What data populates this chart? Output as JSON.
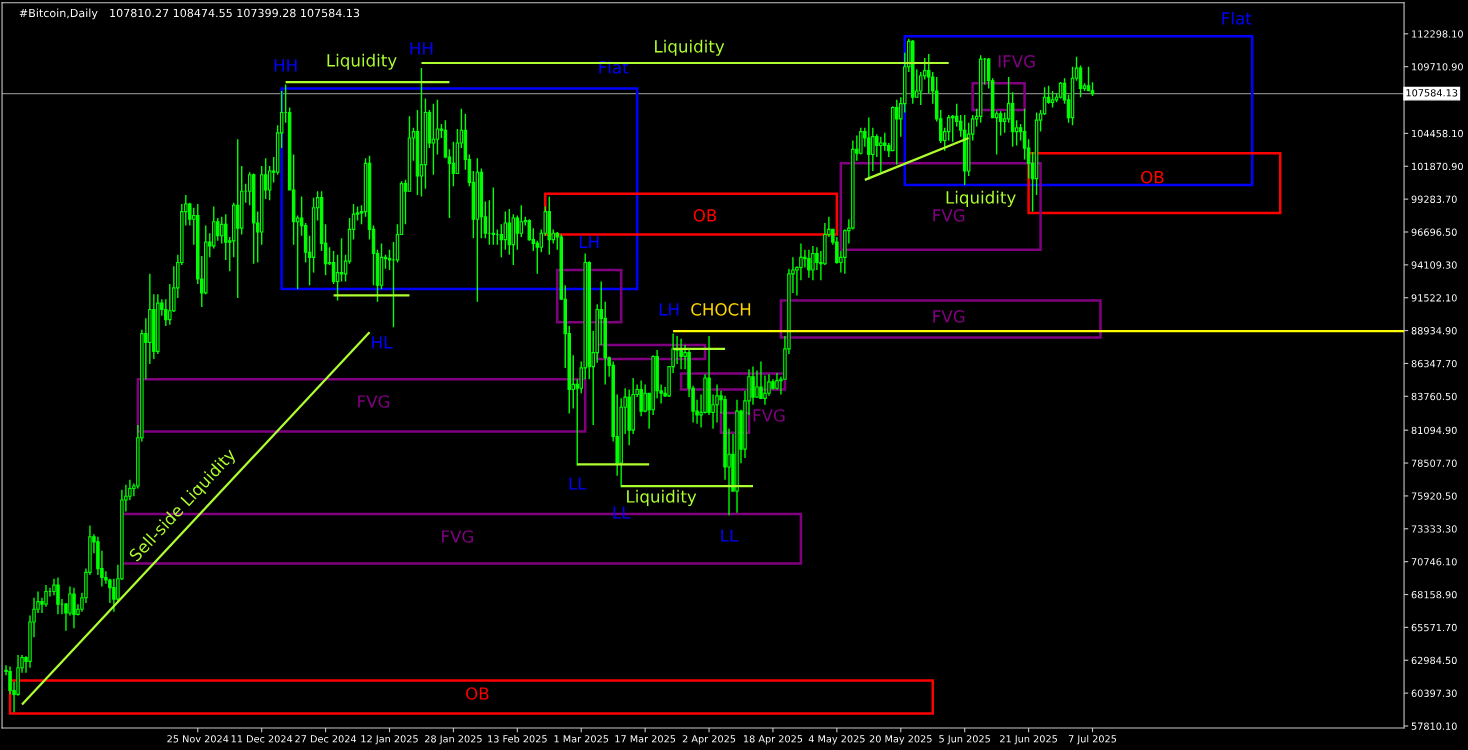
{
  "chart_data": {
    "type": "candlestick",
    "title": "#Bitcoin,Daily",
    "subtitle": "107810.27 108474.55 107399.28 107584.13",
    "x": [
      "2024-10-08",
      "2024-10-09",
      "2024-10-10",
      "2024-10-11",
      "2024-10-12",
      "2024-10-13",
      "2024-10-14",
      "2024-10-15",
      "2024-10-16",
      "2024-10-17",
      "2024-10-18",
      "2024-10-19",
      "2024-10-20",
      "2024-10-21",
      "2024-10-22",
      "2024-10-23",
      "2024-10-24",
      "2024-10-25",
      "2024-10-26",
      "2024-10-27",
      "2024-10-28",
      "2024-10-29",
      "2024-10-30",
      "2024-10-31",
      "2024-11-01",
      "2024-11-02",
      "2024-11-03",
      "2024-11-04",
      "2024-11-05",
      "2024-11-06",
      "2024-11-07",
      "2024-11-08",
      "2024-11-09",
      "2024-11-10",
      "2024-11-11",
      "2024-11-12",
      "2024-11-13",
      "2024-11-14",
      "2024-11-15",
      "2024-11-16",
      "2024-11-17",
      "2024-11-18",
      "2024-11-19",
      "2024-11-20",
      "2024-11-21",
      "2024-11-22",
      "2024-11-23",
      "2024-11-24",
      "2024-11-25",
      "2024-11-26",
      "2024-11-27",
      "2024-11-28",
      "2024-11-29",
      "2024-11-30",
      "2024-12-01",
      "2024-12-02",
      "2024-12-03",
      "2024-12-04",
      "2024-12-05",
      "2024-12-06",
      "2024-12-07",
      "2024-12-08",
      "2024-12-09",
      "2024-12-10",
      "2024-12-11",
      "2024-12-12",
      "2024-12-13",
      "2024-12-14",
      "2024-12-15",
      "2024-12-16",
      "2024-12-17",
      "2024-12-18",
      "2024-12-19",
      "2024-12-20",
      "2024-12-21",
      "2024-12-22",
      "2024-12-23",
      "2024-12-24",
      "2024-12-25",
      "2024-12-26",
      "2024-12-27",
      "2024-12-28",
      "2024-12-29",
      "2024-12-30",
      "2024-12-31",
      "2025-01-01",
      "2025-01-02",
      "2025-01-03",
      "2025-01-04",
      "2025-01-05",
      "2025-01-06",
      "2025-01-07",
      "2025-01-08",
      "2025-01-09",
      "2025-01-10",
      "2025-01-11",
      "2025-01-12",
      "2025-01-13",
      "2025-01-14",
      "2025-01-15",
      "2025-01-16",
      "2025-01-17",
      "2025-01-18",
      "2025-01-19",
      "2025-01-20",
      "2025-01-21",
      "2025-01-22",
      "2025-01-23",
      "2025-01-24",
      "2025-01-25",
      "2025-01-26",
      "2025-01-27",
      "2025-01-28",
      "2025-01-29",
      "2025-01-30",
      "2025-01-31",
      "2025-02-01",
      "2025-02-02",
      "2025-02-03",
      "2025-02-04",
      "2025-02-05",
      "2025-02-06",
      "2025-02-07",
      "2025-02-08",
      "2025-02-09",
      "2025-02-10",
      "2025-02-11",
      "2025-02-12",
      "2025-02-13",
      "2025-02-14",
      "2025-02-15",
      "2025-02-16",
      "2025-02-17",
      "2025-02-18",
      "2025-02-19",
      "2025-02-20",
      "2025-02-21",
      "2025-02-22",
      "2025-02-23",
      "2025-02-24",
      "2025-02-25",
      "2025-02-26",
      "2025-02-27",
      "2025-02-28",
      "2025-03-01",
      "2025-03-02",
      "2025-03-03",
      "2025-03-04",
      "2025-03-05",
      "2025-03-06",
      "2025-03-07",
      "2025-03-08",
      "2025-03-09",
      "2025-03-10",
      "2025-03-11",
      "2025-03-12",
      "2025-03-13",
      "2025-03-14",
      "2025-03-15",
      "2025-03-16",
      "2025-03-17",
      "2025-03-18",
      "2025-03-19",
      "2025-03-20",
      "2025-03-21",
      "2025-03-22",
      "2025-03-23",
      "2025-03-24",
      "2025-03-25",
      "2025-03-26",
      "2025-03-27",
      "2025-03-28",
      "2025-03-29",
      "2025-03-30",
      "2025-03-31",
      "2025-04-01",
      "2025-04-02",
      "2025-04-03",
      "2025-04-04",
      "2025-04-05",
      "2025-04-06",
      "2025-04-07",
      "2025-04-08",
      "2025-04-09",
      "2025-04-10",
      "2025-04-11",
      "2025-04-12",
      "2025-04-13",
      "2025-04-14",
      "2025-04-15",
      "2025-04-16",
      "2025-04-17",
      "2025-04-18",
      "2025-04-19",
      "2025-04-20",
      "2025-04-21",
      "2025-04-22",
      "2025-04-23",
      "2025-04-24",
      "2025-04-25",
      "2025-04-26",
      "2025-04-27",
      "2025-04-28",
      "2025-04-29",
      "2025-04-30",
      "2025-05-01",
      "2025-05-02",
      "2025-05-03",
      "2025-05-04",
      "2025-05-05",
      "2025-05-06",
      "2025-05-07",
      "2025-05-08",
      "2025-05-09",
      "2025-05-10",
      "2025-05-11",
      "2025-05-12",
      "2025-05-13",
      "2025-05-14",
      "2025-05-15",
      "2025-05-16",
      "2025-05-17",
      "2025-05-18",
      "2025-05-19",
      "2025-05-20",
      "2025-05-21",
      "2025-05-22",
      "2025-05-23",
      "2025-05-24",
      "2025-05-25",
      "2025-05-26",
      "2025-05-27",
      "2025-05-28",
      "2025-05-29",
      "2025-05-30",
      "2025-05-31",
      "2025-06-01",
      "2025-06-02",
      "2025-06-03",
      "2025-06-04",
      "2025-06-05",
      "2025-06-06",
      "2025-06-07",
      "2025-06-08",
      "2025-06-09",
      "2025-06-10",
      "2025-06-11",
      "2025-06-12",
      "2025-06-13",
      "2025-06-14",
      "2025-06-15",
      "2025-06-16",
      "2025-06-17",
      "2025-06-18",
      "2025-06-19",
      "2025-06-20",
      "2025-06-21",
      "2025-06-22",
      "2025-06-23",
      "2025-06-24",
      "2025-06-25",
      "2025-06-26",
      "2025-06-27",
      "2025-06-28",
      "2025-06-29",
      "2025-06-30",
      "2025-07-01",
      "2025-07-02",
      "2025-07-03",
      "2025-07-04",
      "2025-07-05",
      "2025-07-06",
      "2025-07-07"
    ],
    "ohlc": [
      [
        62200,
        62600,
        61800,
        62100
      ],
      [
        62100,
        62500,
        60300,
        60600
      ],
      [
        60600,
        61300,
        58900,
        60300
      ],
      [
        60300,
        63400,
        60200,
        62400
      ],
      [
        62400,
        63400,
        62000,
        63200
      ],
      [
        63200,
        63300,
        62000,
        62900
      ],
      [
        62900,
        66500,
        62400,
        66000
      ],
      [
        66000,
        67900,
        64800,
        67000
      ],
      [
        67000,
        68400,
        66700,
        67600
      ],
      [
        67600,
        67900,
        66700,
        67400
      ],
      [
        67400,
        68900,
        67200,
        68400
      ],
      [
        68400,
        68700,
        68000,
        68400
      ],
      [
        68400,
        69400,
        68100,
        68900
      ],
      [
        68900,
        69500,
        66600,
        67400
      ],
      [
        67400,
        67800,
        66600,
        67400
      ],
      [
        67400,
        67500,
        65300,
        66700
      ],
      [
        66700,
        68800,
        66500,
        68200
      ],
      [
        68200,
        68700,
        65500,
        66600
      ],
      [
        66600,
        67400,
        66500,
        67000
      ],
      [
        67000,
        68300,
        66800,
        67900
      ],
      [
        67900,
        70200,
        67500,
        69900
      ],
      [
        69900,
        73600,
        69700,
        72700
      ],
      [
        72700,
        72900,
        71400,
        72300
      ],
      [
        72300,
        72700,
        69700,
        70200
      ],
      [
        70200,
        71600,
        68800,
        69500
      ],
      [
        69500,
        70000,
        69000,
        69300
      ],
      [
        69300,
        69400,
        67500,
        68700
      ],
      [
        68700,
        69400,
        66800,
        67800
      ],
      [
        67800,
        70500,
        67500,
        69400
      ],
      [
        69400,
        76400,
        69300,
        75600
      ],
      [
        75600,
        76800,
        74700,
        75900
      ],
      [
        75900,
        77200,
        75600,
        76500
      ],
      [
        76500,
        76900,
        75900,
        76700
      ],
      [
        76700,
        81500,
        76500,
        80500
      ],
      [
        80500,
        89000,
        80200,
        88700
      ],
      [
        88700,
        89900,
        85100,
        88000
      ],
      [
        88000,
        93400,
        86300,
        90600
      ],
      [
        90600,
        91800,
        86700,
        87300
      ],
      [
        87300,
        91800,
        87100,
        91100
      ],
      [
        91100,
        91400,
        90100,
        90600
      ],
      [
        90600,
        91400,
        89300,
        89800
      ],
      [
        89800,
        92600,
        89400,
        90500
      ],
      [
        90500,
        94000,
        90400,
        92300
      ],
      [
        92300,
        94900,
        91500,
        94300
      ],
      [
        94300,
        98900,
        94100,
        98300
      ],
      [
        98300,
        99600,
        97200,
        98900
      ],
      [
        98900,
        99000,
        97200,
        97700
      ],
      [
        97700,
        98600,
        95700,
        98000
      ],
      [
        98000,
        98900,
        92600,
        93000
      ],
      [
        93000,
        94800,
        90800,
        91900
      ],
      [
        91900,
        97200,
        91800,
        95900
      ],
      [
        95900,
        96600,
        94700,
        95600
      ],
      [
        95600,
        98700,
        95400,
        97500
      ],
      [
        97500,
        97800,
        96000,
        96400
      ],
      [
        96400,
        97900,
        95800,
        97300
      ],
      [
        97300,
        98100,
        94500,
        95900
      ],
      [
        95900,
        96300,
        93600,
        96000
      ],
      [
        96000,
        99000,
        94700,
        98800
      ],
      [
        98800,
        104000,
        91500,
        97000
      ],
      [
        97000,
        101900,
        96500,
        99900
      ],
      [
        99900,
        100500,
        99000,
        99900
      ],
      [
        99900,
        101400,
        98800,
        101200
      ],
      [
        101200,
        101300,
        94200,
        97400
      ],
      [
        97400,
        98300,
        94300,
        96700
      ],
      [
        96700,
        101900,
        95700,
        101200
      ],
      [
        101200,
        102500,
        99300,
        100000
      ],
      [
        100000,
        101900,
        99200,
        101500
      ],
      [
        101500,
        102600,
        100600,
        101400
      ],
      [
        101400,
        105100,
        101200,
        104500
      ],
      [
        104500,
        107800,
        103300,
        106100
      ],
      [
        106100,
        108300,
        105300,
        106100
      ],
      [
        106100,
        106500,
        100000,
        100000
      ],
      [
        100000,
        102800,
        95700,
        97500
      ],
      [
        97500,
        98000,
        92200,
        97800
      ],
      [
        97800,
        99500,
        96400,
        97200
      ],
      [
        97200,
        97400,
        94300,
        95100
      ],
      [
        95100,
        96400,
        92500,
        94700
      ],
      [
        94700,
        99400,
        93500,
        98600
      ],
      [
        98600,
        99900,
        97600,
        99400
      ],
      [
        99400,
        99900,
        95200,
        95800
      ],
      [
        95800,
        97300,
        93300,
        94200
      ],
      [
        94200,
        95500,
        94100,
        94300
      ],
      [
        94300,
        95200,
        92600,
        92800
      ],
      [
        92800,
        94900,
        91300,
        93500
      ],
      [
        93500,
        96200,
        92800,
        93400
      ],
      [
        93400,
        94900,
        92800,
        94400
      ],
      [
        94400,
        97800,
        94200,
        96900
      ],
      [
        96900,
        98900,
        96100,
        98100
      ],
      [
        98100,
        98700,
        97600,
        98200
      ],
      [
        98200,
        98800,
        97300,
        98300
      ],
      [
        98300,
        102500,
        97900,
        102100
      ],
      [
        102100,
        102700,
        96100,
        96900
      ],
      [
        96900,
        97200,
        92500,
        95000
      ],
      [
        95000,
        95300,
        91200,
        92500
      ],
      [
        92500,
        95800,
        92200,
        94700
      ],
      [
        94700,
        94900,
        93800,
        94600
      ],
      [
        94600,
        95300,
        93700,
        94500
      ],
      [
        94500,
        95900,
        89200,
        94500
      ],
      [
        94500,
        97300,
        94300,
        96500
      ],
      [
        96500,
        100700,
        96500,
        100500
      ],
      [
        100500,
        100800,
        97300,
        99900
      ],
      [
        99900,
        105800,
        99900,
        104100
      ],
      [
        104100,
        104900,
        102300,
        104600
      ],
      [
        104600,
        106300,
        99600,
        101100
      ],
      [
        101100,
        109600,
        99500,
        102000
      ],
      [
        102000,
        107200,
        100100,
        106100
      ],
      [
        106100,
        106300,
        103300,
        103700
      ],
      [
        103700,
        106800,
        101200,
        104000
      ],
      [
        104000,
        107100,
        102800,
        104800
      ],
      [
        104800,
        105200,
        104100,
        104700
      ],
      [
        104700,
        105500,
        102500,
        102600
      ],
      [
        102600,
        103200,
        97800,
        102100
      ],
      [
        102100,
        103800,
        100300,
        101300
      ],
      [
        101300,
        104800,
        101300,
        103700
      ],
      [
        103700,
        106400,
        103300,
        104700
      ],
      [
        104700,
        106000,
        101600,
        102400
      ],
      [
        102400,
        102800,
        100300,
        100600
      ],
      [
        100600,
        101500,
        96200,
        97700
      ],
      [
        97700,
        102500,
        91200,
        101400
      ],
      [
        101400,
        101700,
        96200,
        97900
      ],
      [
        97900,
        99100,
        96200,
        96600
      ],
      [
        96600,
        99200,
        95700,
        96600
      ],
      [
        96600,
        100200,
        95700,
        96500
      ],
      [
        96500,
        96900,
        95700,
        96500
      ],
      [
        96500,
        97300,
        94700,
        96100
      ],
      [
        96100,
        98300,
        95300,
        97400
      ],
      [
        97400,
        98500,
        94900,
        95700
      ],
      [
        95700,
        98100,
        94100,
        97800
      ],
      [
        97800,
        98000,
        95300,
        96600
      ],
      [
        96600,
        98800,
        96300,
        97500
      ],
      [
        97500,
        97900,
        97200,
        97600
      ],
      [
        97600,
        97700,
        96000,
        96100
      ],
      [
        96100,
        97000,
        95200,
        95800
      ],
      [
        95800,
        96000,
        93400,
        95500
      ],
      [
        95500,
        96900,
        95100,
        96600
      ],
      [
        96600,
        98700,
        96400,
        98300
      ],
      [
        98300,
        99500,
        94900,
        96100
      ],
      [
        96100,
        96900,
        95800,
        96600
      ],
      [
        96600,
        96700,
        95300,
        96300
      ],
      [
        96300,
        96500,
        91400,
        91400
      ],
      [
        91400,
        92500,
        86000,
        88700
      ],
      [
        88700,
        89300,
        82400,
        84300
      ],
      [
        84300,
        87000,
        82800,
        84700
      ],
      [
        84700,
        85100,
        78300,
        84400
      ],
      [
        84400,
        86500,
        84000,
        86000
      ],
      [
        86000,
        95000,
        85100,
        94300
      ],
      [
        94300,
        94400,
        85100,
        86100
      ],
      [
        86100,
        88900,
        81500,
        87200
      ],
      [
        87200,
        91000,
        86400,
        90600
      ],
      [
        90600,
        92800,
        87800,
        89900
      ],
      [
        89900,
        91200,
        84700,
        86800
      ],
      [
        86800,
        86900,
        85300,
        86200
      ],
      [
        86200,
        86500,
        80200,
        80600
      ],
      [
        80600,
        83900,
        77500,
        78500
      ],
      [
        78500,
        83600,
        76600,
        82900
      ],
      [
        82900,
        84400,
        80800,
        83700
      ],
      [
        83700,
        84300,
        79900,
        81100
      ],
      [
        81100,
        85200,
        80800,
        83900
      ],
      [
        83900,
        84700,
        83700,
        84300
      ],
      [
        84300,
        85000,
        82200,
        82600
      ],
      [
        82600,
        84700,
        82500,
        84000
      ],
      [
        84000,
        84000,
        81200,
        82700
      ],
      [
        82700,
        87000,
        82300,
        86900
      ],
      [
        86900,
        87400,
        83600,
        84200
      ],
      [
        84200,
        84700,
        83200,
        84000
      ],
      [
        84000,
        84500,
        83700,
        83800
      ],
      [
        83800,
        86100,
        83700,
        86100
      ],
      [
        86100,
        88700,
        85600,
        87500
      ],
      [
        87500,
        88500,
        86300,
        87400
      ],
      [
        87400,
        88300,
        85900,
        86900
      ],
      [
        86900,
        87800,
        85900,
        87200
      ],
      [
        87200,
        87500,
        83700,
        84400
      ],
      [
        84400,
        84600,
        81700,
        82600
      ],
      [
        82600,
        83500,
        81600,
        82300
      ],
      [
        82300,
        83900,
        81300,
        82500
      ],
      [
        82500,
        85500,
        82400,
        85200
      ],
      [
        85200,
        88500,
        82300,
        82500
      ],
      [
        82500,
        83900,
        81200,
        83100
      ],
      [
        83100,
        84700,
        81700,
        83800
      ],
      [
        83800,
        84200,
        82400,
        83500
      ],
      [
        83500,
        83800,
        77200,
        78200
      ],
      [
        78200,
        81200,
        74400,
        79200
      ],
      [
        79200,
        80800,
        76300,
        76300
      ],
      [
        76300,
        83500,
        74600,
        82600
      ],
      [
        82600,
        82700,
        78500,
        79600
      ],
      [
        79600,
        84200,
        78900,
        83400
      ],
      [
        83400,
        85900,
        82300,
        85300
      ],
      [
        85300,
        86100,
        83100,
        83700
      ],
      [
        83700,
        85800,
        83700,
        84500
      ],
      [
        84500,
        86500,
        83600,
        83600
      ],
      [
        83600,
        85400,
        83100,
        84000
      ],
      [
        84000,
        85500,
        83800,
        84900
      ],
      [
        84900,
        85100,
        84300,
        84400
      ],
      [
        84400,
        85600,
        84300,
        85000
      ],
      [
        85000,
        85300,
        83900,
        85100
      ],
      [
        85100,
        88500,
        85100,
        87500
      ],
      [
        87500,
        93800,
        87100,
        93400
      ],
      [
        93400,
        94700,
        91900,
        93700
      ],
      [
        93700,
        94000,
        91700,
        93900
      ],
      [
        93900,
        95800,
        92900,
        94700
      ],
      [
        94700,
        95300,
        93900,
        94600
      ],
      [
        94600,
        95300,
        93100,
        93700
      ],
      [
        93700,
        95600,
        92900,
        95000
      ],
      [
        95000,
        95500,
        93700,
        94300
      ],
      [
        94300,
        95200,
        92900,
        94200
      ],
      [
        94200,
        97400,
        94100,
        96500
      ],
      [
        96500,
        97900,
        96300,
        96900
      ],
      [
        96900,
        96900,
        95700,
        95900
      ],
      [
        95900,
        96300,
        94200,
        94300
      ],
      [
        94300,
        95200,
        93500,
        94700
      ],
      [
        94700,
        96900,
        93400,
        96800
      ],
      [
        96800,
        97700,
        95800,
        97000
      ],
      [
        97000,
        103900,
        96900,
        103200
      ],
      [
        103200,
        104300,
        102300,
        102900
      ],
      [
        102900,
        104900,
        102800,
        104600
      ],
      [
        104600,
        104900,
        103400,
        104100
      ],
      [
        104100,
        105700,
        100800,
        102800
      ],
      [
        102800,
        104900,
        101500,
        104200
      ],
      [
        104200,
        104400,
        102600,
        103500
      ],
      [
        103500,
        104200,
        101400,
        103700
      ],
      [
        103700,
        104500,
        103100,
        103500
      ],
      [
        103500,
        103700,
        102600,
        103100
      ],
      [
        103100,
        106600,
        103100,
        106500
      ],
      [
        106500,
        107100,
        102000,
        105600
      ],
      [
        105600,
        107300,
        104200,
        106800
      ],
      [
        106800,
        110800,
        106100,
        109700
      ],
      [
        109700,
        111900,
        109300,
        111700
      ],
      [
        111700,
        111800,
        106800,
        107300
      ],
      [
        107300,
        109500,
        107300,
        107800
      ],
      [
        107800,
        109300,
        106700,
        109000
      ],
      [
        109000,
        110400,
        108700,
        109400
      ],
      [
        109400,
        110700,
        107600,
        108900
      ],
      [
        108900,
        109300,
        106800,
        107800
      ],
      [
        107800,
        108900,
        105400,
        105600
      ],
      [
        105600,
        106300,
        103700,
        103900
      ],
      [
        103900,
        104900,
        103100,
        104600
      ],
      [
        104600,
        105900,
        103900,
        105700
      ],
      [
        105700,
        105900,
        103800,
        105800
      ],
      [
        105800,
        106800,
        105000,
        105400
      ],
      [
        105400,
        105900,
        104200,
        104700
      ],
      [
        104700,
        105900,
        100400,
        101500
      ],
      [
        101500,
        105300,
        101100,
        104400
      ],
      [
        104400,
        105900,
        103900,
        105600
      ],
      [
        105600,
        106400,
        105000,
        105800
      ],
      [
        105800,
        110600,
        105300,
        110300
      ],
      [
        110300,
        110400,
        108300,
        110300
      ],
      [
        110300,
        110400,
        108000,
        108600
      ],
      [
        108600,
        108800,
        105700,
        105700
      ],
      [
        105700,
        106200,
        102800,
        106000
      ],
      [
        106000,
        106200,
        104300,
        105400
      ],
      [
        105400,
        106100,
        104500,
        105600
      ],
      [
        105600,
        108900,
        105300,
        106800
      ],
      [
        106800,
        107700,
        103400,
        104600
      ],
      [
        104600,
        105500,
        103500,
        104900
      ],
      [
        104900,
        105200,
        103900,
        104600
      ],
      [
        104600,
        106400,
        102400,
        103300
      ],
      [
        103300,
        104000,
        100900,
        102100
      ],
      [
        102100,
        103000,
        98300,
        100900
      ],
      [
        100900,
        106100,
        99600,
        105500
      ],
      [
        105500,
        106300,
        104600,
        106000
      ],
      [
        106000,
        108100,
        105900,
        107300
      ],
      [
        107300,
        108200,
        106800,
        106900
      ],
      [
        106900,
        107800,
        106500,
        107100
      ],
      [
        107100,
        107600,
        106900,
        107300
      ],
      [
        107300,
        108500,
        107200,
        108400
      ],
      [
        108400,
        108800,
        106800,
        107100
      ],
      [
        107100,
        107500,
        105300,
        105700
      ],
      [
        105700,
        109700,
        105100,
        108800
      ],
      [
        108800,
        110500,
        108600,
        109600
      ],
      [
        109600,
        109800,
        107300,
        108000
      ],
      [
        108000,
        108400,
        107800,
        108200
      ],
      [
        108200,
        109700,
        107800,
        107810
      ],
      [
        107810.27,
        108474.55,
        107399.28,
        107584.13
      ]
    ],
    "series": [
      {
        "type": "line",
        "color": "#adff2f",
        "x": [
          "2025-01-20",
          "2025-06-01"
        ],
        "values": [
          110000,
          110000
        ]
      },
      {
        "type": "line",
        "color": "#adff2f",
        "x": [
          "2024-12-17",
          "2025-01-27"
        ],
        "values": [
          108500,
          108500
        ]
      },
      {
        "type": "line",
        "color": "#adff2f",
        "x": [
          "2024-12-29",
          "2025-01-17"
        ],
        "values": [
          91700,
          91700
        ]
      },
      {
        "type": "line",
        "color": "#adff2f",
        "x": [
          "2025-02-28",
          "2025-03-18"
        ],
        "values": [
          78400,
          78400
        ]
      },
      {
        "type": "line",
        "color": "#adff2f",
        "x": [
          "2025-03-11",
          "2025-04-13"
        ],
        "values": [
          76700,
          76700
        ]
      },
      {
        "type": "line",
        "color": "#adff2f",
        "x": [
          "2025-03-24",
          "2025-04-06"
        ],
        "values": [
          87500,
          87500
        ]
      },
      {
        "type": "line",
        "color": "#adff2f",
        "x": [
          "2025-05-11",
          "2025-06-06"
        ],
        "values": [
          100800,
          104100
        ]
      },
      {
        "type": "line",
        "color": "#adff2f",
        "name": "Sell-side Liquidity",
        "x": [
          "2024-10-12",
          "2025-01-07"
        ],
        "values": [
          59500,
          88800
        ]
      },
      {
        "type": "line",
        "color": "#ffff00",
        "x": [
          "2025-03-24",
          "2025-09-23"
        ],
        "values": [
          88900,
          88900
        ]
      }
    ],
    "annotations": [
      "HH",
      "HH",
      "HL",
      "LH",
      "LH",
      "LL",
      "LL",
      "LL",
      "Flat",
      "Flat",
      "OB",
      "OB",
      "OB",
      "FVG",
      "FVG",
      "FVG",
      "FVG",
      "FVG",
      "IFVG",
      "Liquidity",
      "Liquidity",
      "Liquidity",
      "Liquidity",
      "CHOCH"
    ],
    "ref_lines": [
      {
        "axis": "y",
        "value": 107584.13,
        "label": "107584.13",
        "color": "#808080"
      }
    ],
    "xlim": [
      "2024-10-07",
      "2025-09-23"
    ],
    "ylim": [
      57650,
      114740
    ],
    "xticks": [
      {
        "value": "2024-11-25",
        "label": "25 Nov 2024"
      },
      {
        "value": "2024-12-11",
        "label": "11 Dec 2024"
      },
      {
        "value": "2024-12-27",
        "label": "27 Dec 2024"
      },
      {
        "value": "2025-01-12",
        "label": "12 Jan 2025"
      },
      {
        "value": "2025-01-28",
        "label": "28 Jan 2025"
      },
      {
        "value": "2025-02-13",
        "label": "13 Feb 2025"
      },
      {
        "value": "2025-03-01",
        "label": "1 Mar 2025"
      },
      {
        "value": "2025-03-17",
        "label": "17 Mar 2025"
      },
      {
        "value": "2025-04-02",
        "label": "2 Apr 2025"
      },
      {
        "value": "2025-04-18",
        "label": "18 Apr 2025"
      },
      {
        "value": "2025-05-04",
        "label": "4 May 2025"
      },
      {
        "value": "2025-05-20",
        "label": "20 May 2025"
      },
      {
        "value": "2025-06-05",
        "label": "5 Jun 2025"
      },
      {
        "value": "2025-06-21",
        "label": "21 Jun 2025"
      },
      {
        "value": "2025-07-07",
        "label": "7 Jul 2025"
      }
    ],
    "yticks": [
      {
        "value": 57810.1,
        "label": "57810.10"
      },
      {
        "value": 60397.3,
        "label": "60397.30"
      },
      {
        "value": 62984.5,
        "label": "62984.50"
      },
      {
        "value": 65571.7,
        "label": "65571.70"
      },
      {
        "value": 68158.9,
        "label": "68158.90"
      },
      {
        "value": 70746.1,
        "label": "70746.10"
      },
      {
        "value": 73333.3,
        "label": "73333.30"
      },
      {
        "value": 75920.5,
        "label": "75920.50"
      },
      {
        "value": 78507.7,
        "label": "78507.70"
      },
      {
        "value": 81094.9,
        "label": "81094.90"
      },
      {
        "value": 83760.5,
        "label": "83760.50"
      },
      {
        "value": 86347.7,
        "label": "86347.70"
      },
      {
        "value": 88934.9,
        "label": "88934.90"
      },
      {
        "value": 91522.1,
        "label": "91522.10"
      },
      {
        "value": 94109.3,
        "label": "94109.30"
      },
      {
        "value": 96696.5,
        "label": "96696.50"
      },
      {
        "value": 99283.7,
        "label": "99283.70"
      },
      {
        "value": 101870.9,
        "label": "101870.90"
      },
      {
        "value": 104458.1,
        "label": "104458.10"
      },
      {
        "value": 107123.7,
        "label": null
      },
      {
        "value": 109710.9,
        "label": "109710.90"
      },
      {
        "value": 112298.1,
        "label": "112298.10"
      }
    ],
    "grid": false
  }
}
